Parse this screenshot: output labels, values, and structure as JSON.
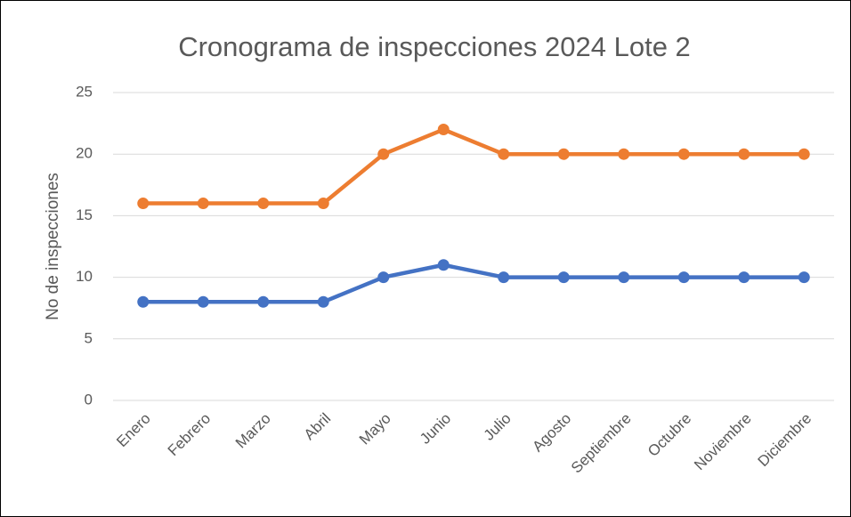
{
  "chart_data": {
    "type": "line",
    "title": "Cronograma de inspecciones 2024 Lote 2",
    "y_label": "No de inspecciones",
    "categories": [
      "Enero",
      "Febrero",
      "Marzo",
      "Abril",
      "Mayo",
      "Junio",
      "Julio",
      "Agosto",
      "Septiembre",
      "Octubre",
      "Noviembre",
      "Diciembre"
    ],
    "series": [
      {
        "color": "#4472c4",
        "values": [
          8,
          8,
          8,
          8,
          10,
          11,
          10,
          10,
          10,
          10,
          10,
          10
        ]
      },
      {
        "color": "#ed7d31",
        "values": [
          16,
          16,
          16,
          16,
          20,
          22,
          20,
          20,
          20,
          20,
          20,
          20
        ]
      }
    ],
    "ylim": [
      0,
      25
    ],
    "yticks": [
      0,
      5,
      10,
      15,
      20,
      25
    ],
    "grid": true
  }
}
